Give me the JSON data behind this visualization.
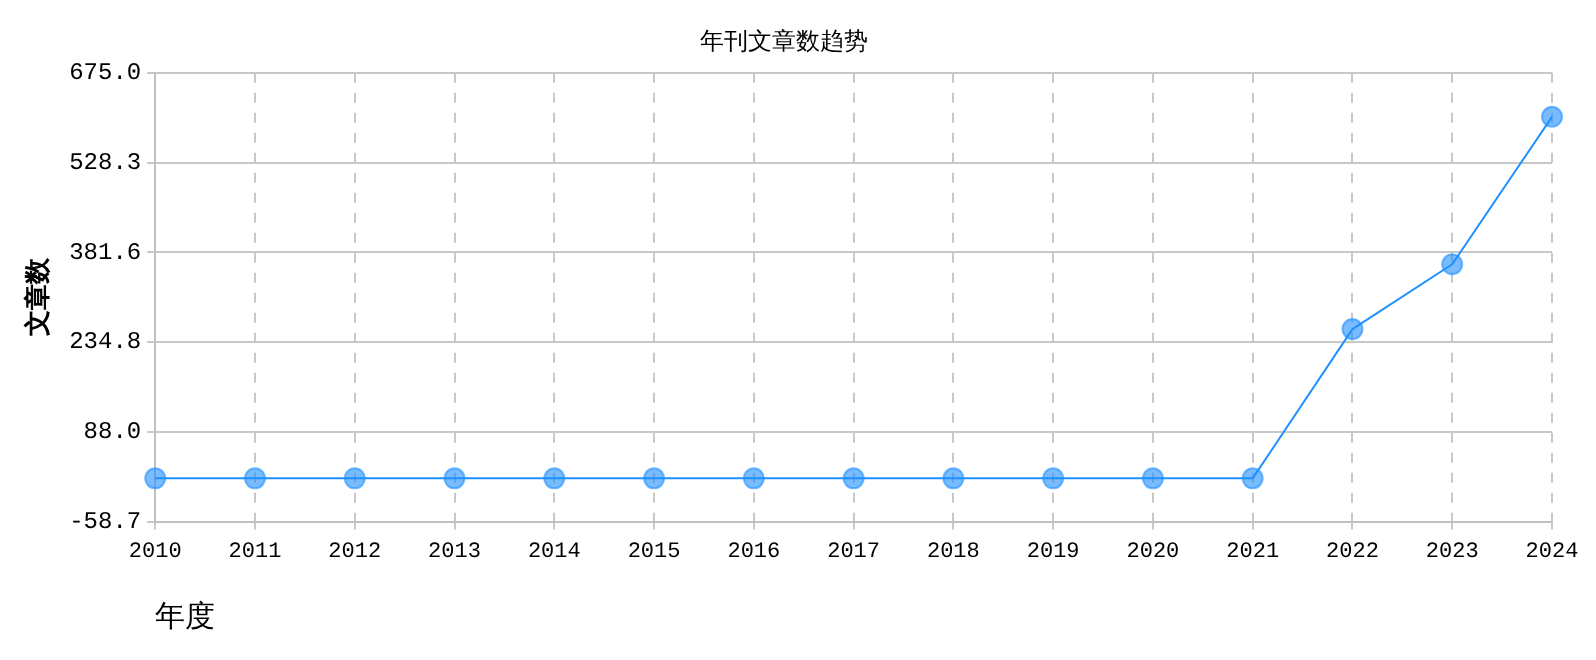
{
  "chart_data": {
    "type": "line",
    "title": "年刊文章数趋势",
    "xlabel": "年度",
    "ylabel": "文章数",
    "categories": [
      "2010",
      "2011",
      "2012",
      "2013",
      "2014",
      "2015",
      "2016",
      "2017",
      "2018",
      "2019",
      "2020",
      "2021",
      "2022",
      "2023",
      "2024"
    ],
    "series": [
      {
        "color": "#1e90ff",
        "values": [
          12,
          12,
          12,
          12,
          12,
          12,
          12,
          12,
          12,
          12,
          12,
          12,
          256,
          362,
          603
        ]
      }
    ],
    "ylim": [
      -58.7,
      675
    ],
    "yticks": [
      {
        "value": -58.7,
        "label": "-58.7"
      },
      {
        "value": 88,
        "label": "88.0"
      },
      {
        "value": 234.8,
        "label": "234.8"
      },
      {
        "value": 381.6,
        "label": "381.6"
      },
      {
        "value": 528.3,
        "label": "528.3"
      },
      {
        "value": 675,
        "label": "675.0"
      }
    ],
    "grid": true,
    "marker": "circle",
    "line_style": "solid",
    "legend": false
  }
}
